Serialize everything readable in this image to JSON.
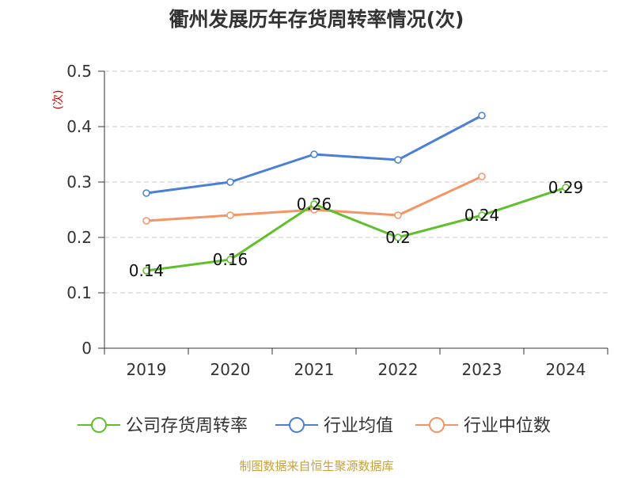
{
  "chart_data": {
    "type": "line",
    "title": "衢州发展历年存货周转率情况(次)",
    "ylabel": "(次)",
    "ylim": [
      0,
      0.5
    ],
    "yticks": [
      0,
      0.1,
      0.2,
      0.3,
      0.4,
      0.5
    ],
    "ytick_labels": [
      "0",
      "0.1",
      "0.2",
      "0.3",
      "0.4",
      "0.5"
    ],
    "categories": [
      "2019",
      "2020",
      "2021",
      "2022",
      "2023",
      "2024"
    ],
    "grid": true,
    "legend_position": "bottom",
    "series": [
      {
        "name": "公司存货周转率",
        "color": "#5fc02c",
        "values": [
          0.14,
          0.16,
          0.26,
          0.2,
          0.24,
          0.29
        ],
        "data_labels": [
          "0.14",
          "0.16",
          "0.26",
          "0.2",
          "0.24",
          "0.29"
        ]
      },
      {
        "name": "行业均值",
        "color": "#4a7fd8",
        "values": [
          0.28,
          0.3,
          0.35,
          0.34,
          0.42,
          null
        ]
      },
      {
        "name": "行业中位数",
        "color": "#f59565",
        "values": [
          0.23,
          0.24,
          0.25,
          0.24,
          0.31,
          null
        ]
      }
    ],
    "source": "制图数据来自恒生聚源数据库",
    "colors": {
      "title": "#333333",
      "ylabel": "#cc0000",
      "grid": "#c8c8c8",
      "axis": "#333333",
      "source": "#c8a03c"
    }
  }
}
